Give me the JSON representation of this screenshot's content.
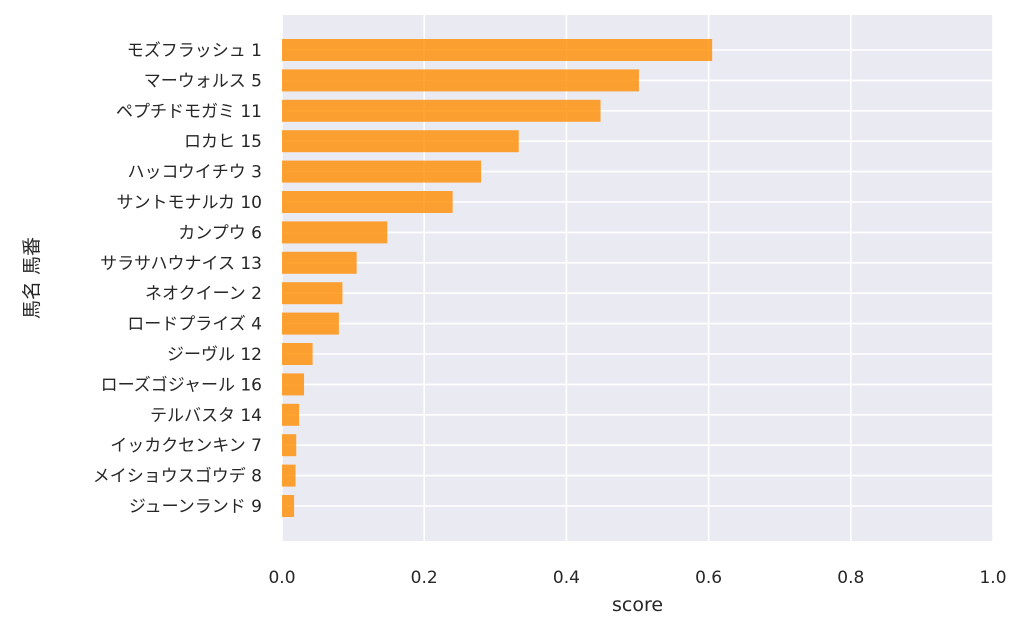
{
  "chart_data": {
    "type": "bar",
    "orientation": "horizontal",
    "title": "",
    "xlabel": "score",
    "ylabel": "馬名 馬番",
    "xlim": [
      0.0,
      1.0
    ],
    "xticks": [
      "0.0",
      "0.2",
      "0.4",
      "0.6",
      "0.8",
      "1.0"
    ],
    "grid": true,
    "categories": [
      "モズフラッシュ 1",
      "マーウォルス 5",
      "ペプチドモガミ 11",
      "ロカヒ 15",
      "ハッコウイチウ 3",
      "サントモナルカ 10",
      "カンプウ 6",
      "サラサハウナイス 13",
      "ネオクイーン 2",
      "ロードプライズ 4",
      "ジーヴル 12",
      "ローズゴジャール 16",
      "テルバスタ 14",
      "イッカクセンキン 7",
      "メイショウスゴウデ 8",
      "ジューンランド 9"
    ],
    "values": [
      0.605,
      0.502,
      0.448,
      0.333,
      0.28,
      0.24,
      0.148,
      0.105,
      0.085,
      0.08,
      0.043,
      0.031,
      0.024,
      0.02,
      0.019,
      0.017
    ],
    "colors": {
      "bar": "#ff8c00",
      "plot_background": "#eaeaf2",
      "grid": "#ffffff",
      "text": "#262626"
    }
  }
}
